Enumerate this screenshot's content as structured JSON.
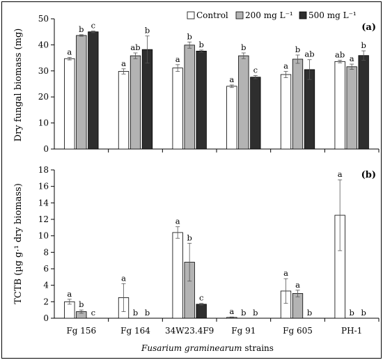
{
  "colors": {
    "Control": "#ffffff",
    "200 mg L⁻¹": "#b3b3b3",
    "500 mg L⁻¹": "#2e2e2e"
  },
  "legend": [
    "Control",
    "200 mg L⁻¹",
    "500 mg L⁻¹"
  ],
  "x_title_italic": "Fusarium graminearum",
  "x_title_rest": " strains",
  "chart_data": [
    {
      "type": "bar",
      "panel": "(a)",
      "ylabel": "Dry fungal biomass (mg)",
      "ylim": [
        0,
        50
      ],
      "yticks": [
        0,
        10,
        20,
        30,
        40,
        50
      ],
      "categories": [
        "Fg 156",
        "Fg 164",
        "34W23.4F9",
        "Fg 91",
        "Fg 605",
        "PH-1"
      ],
      "series": [
        {
          "name": "Control",
          "values": [
            34.7,
            29.8,
            31.1,
            24.1,
            28.6,
            33.6
          ],
          "errors": [
            0.5,
            1.0,
            1.3,
            0.5,
            1.2,
            0.5
          ],
          "labels": [
            "a",
            "a",
            "a",
            "a",
            "a",
            "ab"
          ]
        },
        {
          "name": "200 mg L⁻¹",
          "values": [
            43.6,
            35.8,
            39.9,
            35.8,
            34.5,
            31.6
          ],
          "errors": [
            0.3,
            1.1,
            1.2,
            1.1,
            1.6,
            1.0
          ],
          "labels": [
            "b",
            "ab",
            "b",
            "b",
            "b",
            "a"
          ]
        },
        {
          "name": "500 mg L⁻¹",
          "values": [
            45.0,
            38.2,
            37.6,
            27.6,
            30.5,
            35.9
          ],
          "errors": [
            0.3,
            5.2,
            0.4,
            0.6,
            3.8,
            1.8
          ],
          "labels": [
            "c",
            "b",
            "b",
            "c",
            "ab",
            "b"
          ]
        }
      ]
    },
    {
      "type": "bar",
      "panel": "(b)",
      "ylabel": "TCTB (µg g·¹ dry biomass)",
      "ylim": [
        0,
        18
      ],
      "yticks": [
        0,
        2,
        4,
        6,
        8,
        10,
        12,
        14,
        16,
        18
      ],
      "categories": [
        "Fg 156",
        "Fg 164",
        "34W23.4F9",
        "Fg 91",
        "Fg 605",
        "PH-1"
      ],
      "series": [
        {
          "name": "Control",
          "values": [
            2.0,
            2.5,
            10.4,
            0.1,
            3.3,
            12.5
          ],
          "errors": [
            0.3,
            1.7,
            0.7,
            0.05,
            1.5,
            4.3
          ],
          "labels": [
            "a",
            "a",
            "a",
            "a",
            "a",
            "a"
          ]
        },
        {
          "name": "200 mg L⁻¹",
          "values": [
            0.8,
            0,
            6.8,
            0,
            3.0,
            0
          ],
          "errors": [
            0.2,
            0,
            2.3,
            0,
            0.4,
            0
          ],
          "labels": [
            "b",
            "b",
            "b",
            "b",
            "a",
            "b"
          ]
        },
        {
          "name": "500 mg L⁻¹",
          "values": [
            0,
            0,
            1.7,
            0,
            0,
            0
          ],
          "errors": [
            0,
            0,
            0.1,
            0,
            0,
            0
          ],
          "labels": [
            "c",
            "b",
            "c",
            "b",
            "b",
            "b"
          ]
        }
      ]
    }
  ]
}
